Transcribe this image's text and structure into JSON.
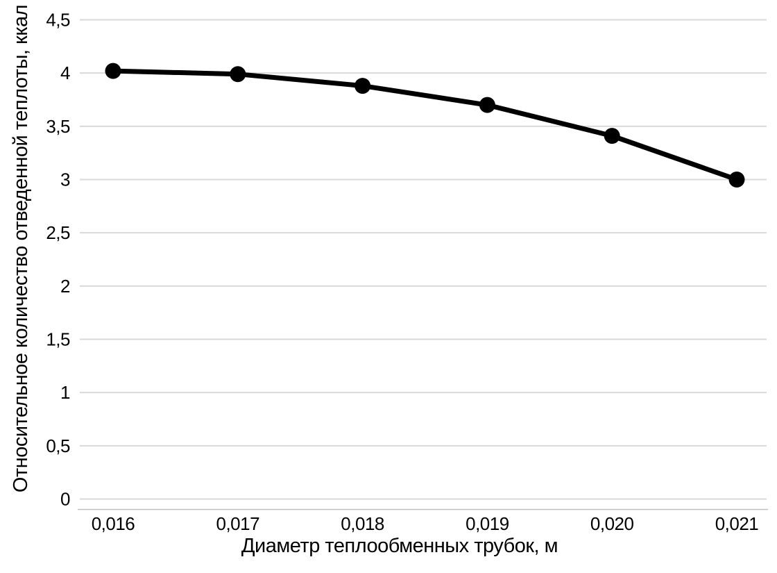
{
  "chart_data": {
    "type": "line",
    "title": "",
    "xlabel": "Диаметр теплообменных трубок, м",
    "ylabel": "Относительное количество отведенной теплоты, ккал",
    "x_values": [
      0.016,
      0.017,
      0.018,
      0.019,
      0.02,
      0.021
    ],
    "x_tick_labels": [
      "0,016",
      "0,017",
      "0,018",
      "0,019",
      "0,020",
      "0,021"
    ],
    "series": [
      {
        "name": "Относительное количество отведенной теплоты",
        "values": [
          4.02,
          3.99,
          3.88,
          3.7,
          3.41,
          3.0
        ]
      }
    ],
    "y_tick_values": [
      0,
      0.5,
      1,
      1.5,
      2,
      2.5,
      3,
      3.5,
      4,
      4.5
    ],
    "y_tick_labels": [
      "0",
      "0,5",
      "1",
      "1,5",
      "2",
      "2,5",
      "3",
      "3,5",
      "4",
      "4,5"
    ],
    "ylim": [
      0,
      4.5
    ],
    "grid": "horizontal",
    "legend": "none",
    "marker": "filled-circle",
    "colors": {
      "line": "#000000",
      "marker": "#000000",
      "gridline": "#d9d9d9",
      "axis_line": "#bfbfbf",
      "text": "#000000",
      "background": "#ffffff"
    }
  }
}
